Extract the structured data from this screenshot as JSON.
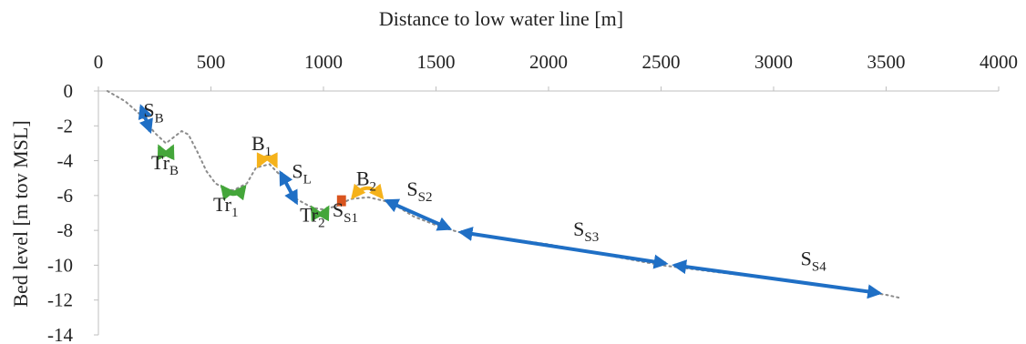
{
  "chart_data": {
    "type": "line",
    "title": "",
    "xlabel": "Distance to low water line [m]",
    "ylabel": "Bed level [m tov MSL]",
    "xlim": [
      0,
      4000
    ],
    "ylim": [
      -14,
      0
    ],
    "x_ticks": [
      0,
      500,
      1000,
      1500,
      2000,
      2500,
      3000,
      3500,
      4000
    ],
    "y_ticks": [
      0,
      -2,
      -4,
      -6,
      -8,
      -10,
      -12,
      -14
    ],
    "x_axis_position": "top",
    "grid": false,
    "colors": {
      "blue": "#1f6fc5",
      "green": "#44a63a",
      "yellow": "#f5b21b",
      "orange": "#d9541e",
      "profile": "#8c8c8c"
    },
    "profile": {
      "x": [
        40,
        120,
        190,
        250,
        300,
        340,
        370,
        400,
        440,
        480,
        520,
        560,
        600,
        660,
        700,
        760,
        820,
        880,
        950,
        1000,
        1060,
        1120,
        1200,
        1300,
        1400,
        1500,
        1600,
        2000,
        2500,
        3000,
        3500,
        3570
      ],
      "y": [
        0,
        -0.6,
        -1.4,
        -2.4,
        -3.0,
        -2.6,
        -2.3,
        -2.5,
        -3.5,
        -4.6,
        -5.3,
        -5.6,
        -5.7,
        -5.3,
        -4.4,
        -4.2,
        -5.0,
        -6.2,
        -6.7,
        -6.8,
        -6.6,
        -6.2,
        -6.1,
        -6.4,
        -7.2,
        -7.7,
        -8.1,
        -8.8,
        -10.0,
        -10.8,
        -11.7,
        -11.9
      ]
    },
    "segments": [
      {
        "label": "S",
        "sub": "B",
        "color": "blue",
        "style": "arrow",
        "x": [
          190,
          230
        ],
        "y": [
          -0.9,
          -2.3
        ],
        "label_pos": [
          200,
          -1.5
        ]
      },
      {
        "label": "Tr",
        "sub": "B",
        "color": "green",
        "style": "arc",
        "x": [
          270,
          330
        ],
        "y": [
          -3.2,
          -3.2
        ],
        "label_pos": [
          235,
          -4.5
        ]
      },
      {
        "label": "Tr",
        "sub": "1",
        "color": "green",
        "style": "arc",
        "x": [
          550,
          650
        ],
        "y": [
          -5.5,
          -5.5
        ],
        "label_pos": [
          510,
          -6.9
        ]
      },
      {
        "label": "B",
        "sub": "1",
        "color": "yellow",
        "style": "arc",
        "x": [
          710,
          790
        ],
        "y": [
          -4.3,
          -4.3
        ],
        "label_pos": [
          680,
          -3.4
        ]
      },
      {
        "label": "S",
        "sub": "L",
        "color": "blue",
        "style": "arrow",
        "x": [
          810,
          880
        ],
        "y": [
          -4.7,
          -6.4
        ],
        "label_pos": [
          860,
          -5.0
        ]
      },
      {
        "label": "Tr",
        "sub": "2",
        "color": "green",
        "style": "arc",
        "x": [
          950,
          1020
        ],
        "y": [
          -6.7,
          -6.7
        ],
        "label_pos": [
          895,
          -7.5
        ]
      },
      {
        "label": "S",
        "sub": "S1",
        "color": "orange",
        "style": "block",
        "x": [
          1060,
          1100
        ],
        "y": [
          -6.5,
          -6.3
        ],
        "label_pos": [
          1040,
          -7.2
        ]
      },
      {
        "label": "B",
        "sub": "2",
        "color": "yellow",
        "style": "arc",
        "x": [
          1130,
          1260
        ],
        "y": [
          -6.1,
          -6.1
        ],
        "label_pos": [
          1145,
          -5.4
        ]
      },
      {
        "label": "S",
        "sub": "S2",
        "color": "blue",
        "style": "curve",
        "x": [
          1280,
          1400,
          1560
        ],
        "y": [
          -6.3,
          -7.0,
          -7.9
        ],
        "label_pos": [
          1370,
          -6.0
        ]
      },
      {
        "label": "S",
        "sub": "S3",
        "color": "blue",
        "style": "arrow",
        "x": [
          1610,
          2520
        ],
        "y": [
          -8.1,
          -9.9
        ],
        "label_pos": [
          2110,
          -8.3
        ]
      },
      {
        "label": "S",
        "sub": "S4",
        "color": "blue",
        "style": "arrow",
        "x": [
          2560,
          3470
        ],
        "y": [
          -10.0,
          -11.6
        ],
        "label_pos": [
          3120,
          -10.0
        ]
      }
    ]
  }
}
